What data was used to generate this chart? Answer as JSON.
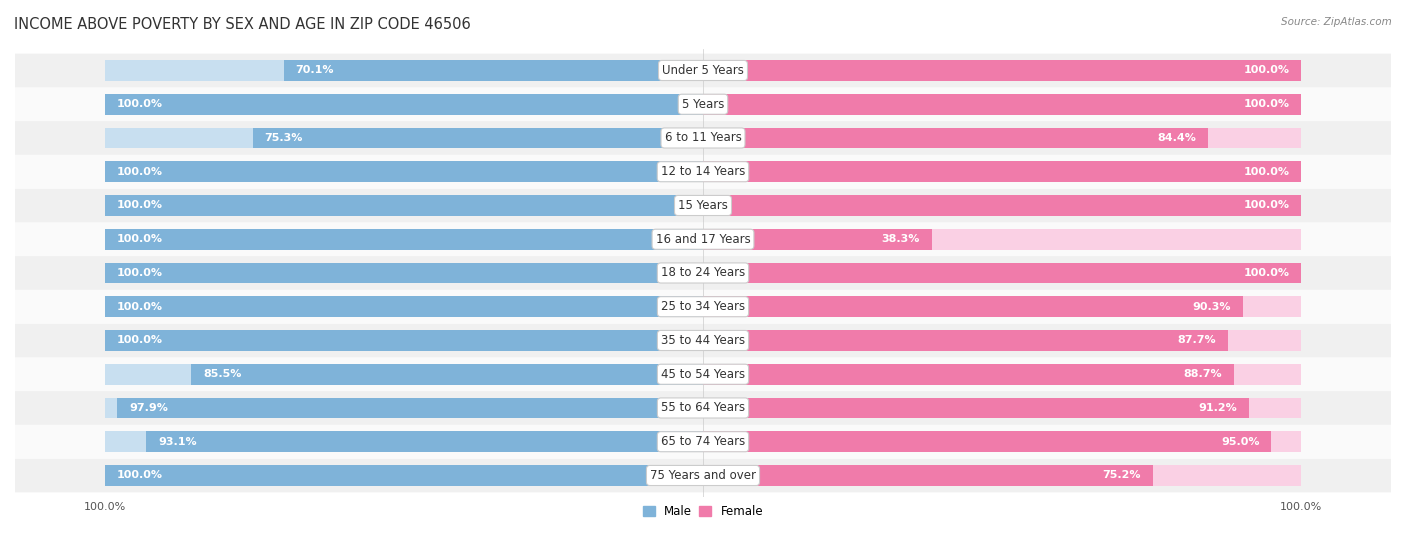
{
  "title": "INCOME ABOVE POVERTY BY SEX AND AGE IN ZIP CODE 46506",
  "source": "Source: ZipAtlas.com",
  "categories": [
    "Under 5 Years",
    "5 Years",
    "6 to 11 Years",
    "12 to 14 Years",
    "15 Years",
    "16 and 17 Years",
    "18 to 24 Years",
    "25 to 34 Years",
    "35 to 44 Years",
    "45 to 54 Years",
    "55 to 64 Years",
    "65 to 74 Years",
    "75 Years and over"
  ],
  "male_values": [
    70.1,
    100.0,
    75.3,
    100.0,
    100.0,
    100.0,
    100.0,
    100.0,
    100.0,
    85.5,
    97.9,
    93.1,
    100.0
  ],
  "female_values": [
    100.0,
    100.0,
    84.4,
    100.0,
    100.0,
    38.3,
    100.0,
    90.3,
    87.7,
    88.7,
    91.2,
    95.0,
    75.2
  ],
  "male_color": "#7fb3d9",
  "female_color": "#f07baa",
  "male_bg_color": "#c8dff0",
  "female_bg_color": "#fad0e4",
  "row_bg_even": "#f0f0f0",
  "row_bg_odd": "#fafafa",
  "title_fontsize": 10.5,
  "label_fontsize": 8.5,
  "value_fontsize": 8.0,
  "axis_label_fontsize": 8.0,
  "max_value": 100.0,
  "bar_height": 0.62,
  "bg_color": "#ffffff"
}
